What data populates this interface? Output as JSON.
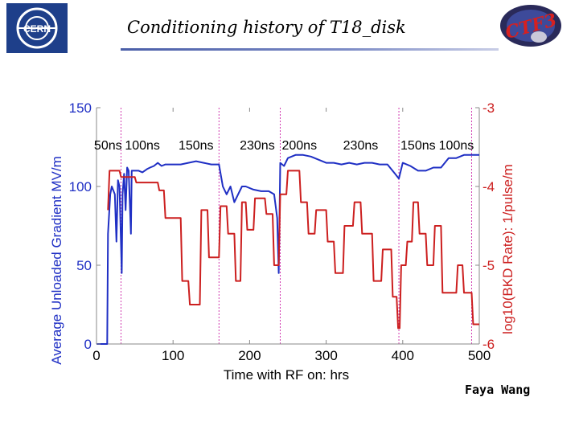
{
  "slide": {
    "title": "Conditioning history of T18_disk",
    "author": "Faya Wang",
    "logo_left_text": "CERN",
    "logo_right_text": "CTF3"
  },
  "colors": {
    "gradient_series": "#1f2fc4",
    "bkd_series": "#cc1f1f",
    "left_axis": "#1f2fc4",
    "right_axis": "#cc1f1f",
    "markers": "#d13bb0"
  },
  "chart_data": {
    "type": "line",
    "xlabel": "Time with RF on: hrs",
    "ylabel_left": "Average Unloaded Gradient MV/m",
    "ylabel_right": "log10(BKD Rate): 1/pulse/m",
    "xlim": [
      0,
      500
    ],
    "ylim_left": [
      0,
      150
    ],
    "ylim_right": [
      -6,
      -3
    ],
    "x_ticks": [
      "0",
      "100",
      "200",
      "300",
      "400",
      "500"
    ],
    "y_ticks_left": [
      "0",
      "50",
      "100",
      "150"
    ],
    "y_ticks_right": [
      "-6",
      "-5",
      "-4",
      "-3"
    ],
    "grid": false,
    "pulse_annotations": [
      "50ns",
      "100ns",
      "150ns",
      "230ns",
      "200ns",
      "230ns",
      "150ns",
      "100ns"
    ],
    "pulse_annotation_x": [
      15,
      60,
      130,
      210,
      265,
      345,
      420,
      470
    ],
    "phase_boundaries_x": [
      32,
      160,
      240,
      395,
      490
    ],
    "series": [
      {
        "axis": "left",
        "points": [
          [
            0,
            0
          ],
          [
            14,
            0
          ],
          [
            15,
            70
          ],
          [
            18,
            95
          ],
          [
            20,
            100
          ],
          [
            24,
            95
          ],
          [
            26,
            65
          ],
          [
            28,
            104
          ],
          [
            30,
            100
          ],
          [
            33,
            45
          ],
          [
            34,
            95
          ],
          [
            36,
            108
          ],
          [
            38,
            85
          ],
          [
            40,
            112
          ],
          [
            42,
            110
          ],
          [
            45,
            70
          ],
          [
            46,
            110
          ],
          [
            55,
            110
          ],
          [
            60,
            109
          ],
          [
            66,
            111
          ],
          [
            70,
            112
          ],
          [
            75,
            113
          ],
          [
            80,
            115
          ],
          [
            85,
            113
          ],
          [
            90,
            114
          ],
          [
            100,
            114
          ],
          [
            110,
            114
          ],
          [
            120,
            115
          ],
          [
            130,
            116
          ],
          [
            140,
            115
          ],
          [
            150,
            114
          ],
          [
            160,
            114
          ],
          [
            165,
            100
          ],
          [
            170,
            95
          ],
          [
            175,
            100
          ],
          [
            180,
            90
          ],
          [
            185,
            95
          ],
          [
            190,
            100
          ],
          [
            195,
            100
          ],
          [
            205,
            98
          ],
          [
            215,
            97
          ],
          [
            225,
            97
          ],
          [
            232,
            95
          ],
          [
            236,
            80
          ],
          [
            238,
            45
          ],
          [
            240,
            115
          ],
          [
            245,
            113
          ],
          [
            250,
            118
          ],
          [
            260,
            120
          ],
          [
            270,
            120
          ],
          [
            280,
            119
          ],
          [
            290,
            117
          ],
          [
            300,
            115
          ],
          [
            310,
            115
          ],
          [
            320,
            114
          ],
          [
            330,
            115
          ],
          [
            340,
            114
          ],
          [
            350,
            115
          ],
          [
            360,
            115
          ],
          [
            370,
            114
          ],
          [
            380,
            114
          ],
          [
            390,
            108
          ],
          [
            395,
            105
          ],
          [
            400,
            115
          ],
          [
            410,
            113
          ],
          [
            420,
            110
          ],
          [
            430,
            110
          ],
          [
            440,
            112
          ],
          [
            450,
            112
          ],
          [
            460,
            118
          ],
          [
            470,
            118
          ],
          [
            480,
            120
          ],
          [
            490,
            120
          ],
          [
            500,
            120
          ]
        ]
      },
      {
        "axis": "right",
        "points": [
          [
            15,
            -4.3
          ],
          [
            17,
            -3.8
          ],
          [
            30,
            -3.8
          ],
          [
            32,
            -3.88
          ],
          [
            50,
            -3.88
          ],
          [
            52,
            -3.95
          ],
          [
            80,
            -3.95
          ],
          [
            82,
            -4.05
          ],
          [
            88,
            -4.05
          ],
          [
            90,
            -4.4
          ],
          [
            110,
            -4.4
          ],
          [
            112,
            -5.2
          ],
          [
            120,
            -5.2
          ],
          [
            122,
            -5.5
          ],
          [
            135,
            -5.5
          ],
          [
            137,
            -4.3
          ],
          [
            145,
            -4.3
          ],
          [
            147,
            -4.9
          ],
          [
            160,
            -4.9
          ],
          [
            162,
            -4.25
          ],
          [
            170,
            -4.25
          ],
          [
            172,
            -4.6
          ],
          [
            180,
            -4.6
          ],
          [
            182,
            -5.2
          ],
          [
            188,
            -5.2
          ],
          [
            190,
            -4.2
          ],
          [
            195,
            -4.2
          ],
          [
            197,
            -4.55
          ],
          [
            205,
            -4.55
          ],
          [
            207,
            -4.15
          ],
          [
            220,
            -4.15
          ],
          [
            222,
            -4.35
          ],
          [
            230,
            -4.35
          ],
          [
            232,
            -5.0
          ],
          [
            238,
            -5.0
          ],
          [
            240,
            -4.1
          ],
          [
            248,
            -4.1
          ],
          [
            250,
            -3.8
          ],
          [
            265,
            -3.8
          ],
          [
            267,
            -4.2
          ],
          [
            275,
            -4.2
          ],
          [
            277,
            -4.6
          ],
          [
            285,
            -4.6
          ],
          [
            287,
            -4.3
          ],
          [
            300,
            -4.3
          ],
          [
            302,
            -4.7
          ],
          [
            310,
            -4.7
          ],
          [
            312,
            -5.1
          ],
          [
            322,
            -5.1
          ],
          [
            324,
            -4.5
          ],
          [
            335,
            -4.5
          ],
          [
            337,
            -4.2
          ],
          [
            345,
            -4.2
          ],
          [
            347,
            -4.6
          ],
          [
            360,
            -4.6
          ],
          [
            362,
            -5.2
          ],
          [
            372,
            -5.2
          ],
          [
            374,
            -4.8
          ],
          [
            385,
            -4.8
          ],
          [
            387,
            -5.4
          ],
          [
            392,
            -5.4
          ],
          [
            394,
            -5.8
          ],
          [
            396,
            -5.8
          ],
          [
            398,
            -5.0
          ],
          [
            404,
            -5.0
          ],
          [
            406,
            -4.7
          ],
          [
            412,
            -4.7
          ],
          [
            414,
            -4.2
          ],
          [
            420,
            -4.2
          ],
          [
            422,
            -4.6
          ],
          [
            430,
            -4.6
          ],
          [
            432,
            -5.0
          ],
          [
            440,
            -5.0
          ],
          [
            442,
            -4.5
          ],
          [
            450,
            -4.5
          ],
          [
            452,
            -5.35
          ],
          [
            470,
            -5.35
          ],
          [
            472,
            -5.0
          ],
          [
            478,
            -5.0
          ],
          [
            480,
            -5.35
          ],
          [
            490,
            -5.35
          ],
          [
            492,
            -5.75
          ],
          [
            500,
            -5.75
          ]
        ]
      }
    ]
  }
}
